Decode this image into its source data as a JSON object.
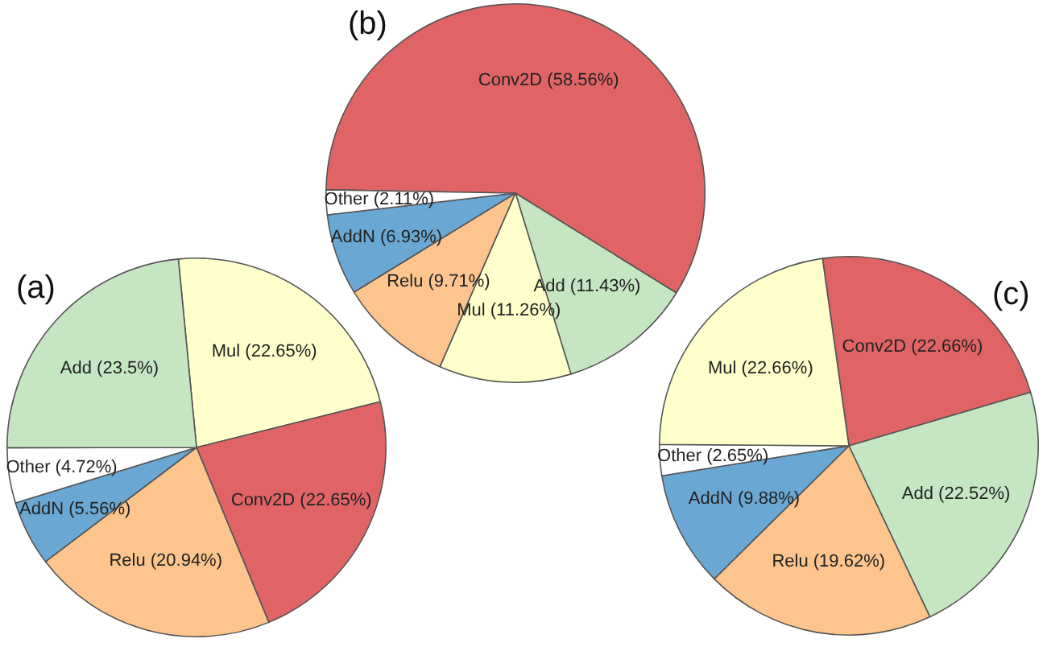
{
  "chart_data": [
    {
      "type": "pie",
      "title": "(a)",
      "categories": [
        "Mul",
        "Conv2D",
        "Relu",
        "AddN",
        "Other",
        "Add"
      ],
      "values": [
        22.65,
        22.65,
        20.94,
        5.56,
        4.72,
        23.5
      ],
      "colors": [
        "#ffffcc",
        "#e06466",
        "#fdc48e",
        "#6aa8d3",
        "#ffffff",
        "#c6e6c3"
      ],
      "value_labels": [
        "(22.65%)",
        "(22.65%)",
        "(20.94%)",
        "(5.56%)",
        "(4.72%)",
        "(23.5%)"
      ]
    },
    {
      "type": "pie",
      "title": "(b)",
      "categories": [
        "Conv2D",
        "Add",
        "Mul",
        "Relu",
        "AddN",
        "Other"
      ],
      "values": [
        58.56,
        11.43,
        11.26,
        9.71,
        6.93,
        2.11
      ],
      "colors": [
        "#e06466",
        "#c6e6c3",
        "#ffffcc",
        "#fdc48e",
        "#6aa8d3",
        "#ffffff"
      ],
      "value_labels": [
        "(58.56%)",
        "(11.43%)",
        "(11.26%)",
        "(9.71%)",
        "(6.93%)",
        "(2.11%)"
      ]
    },
    {
      "type": "pie",
      "title": "(c)",
      "categories": [
        "Conv2D",
        "Add",
        "Relu",
        "AddN",
        "Other",
        "Mul"
      ],
      "values": [
        22.66,
        22.52,
        19.62,
        9.88,
        2.65,
        22.66
      ],
      "colors": [
        "#e06466",
        "#c6e6c3",
        "#fdc48e",
        "#6aa8d3",
        "#ffffff",
        "#ffffcc"
      ],
      "value_labels": [
        "(22.66%)",
        "(22.52%)",
        "(19.62%)",
        "(9.88%)",
        "(2.65%)",
        "(22.66%)"
      ]
    }
  ]
}
